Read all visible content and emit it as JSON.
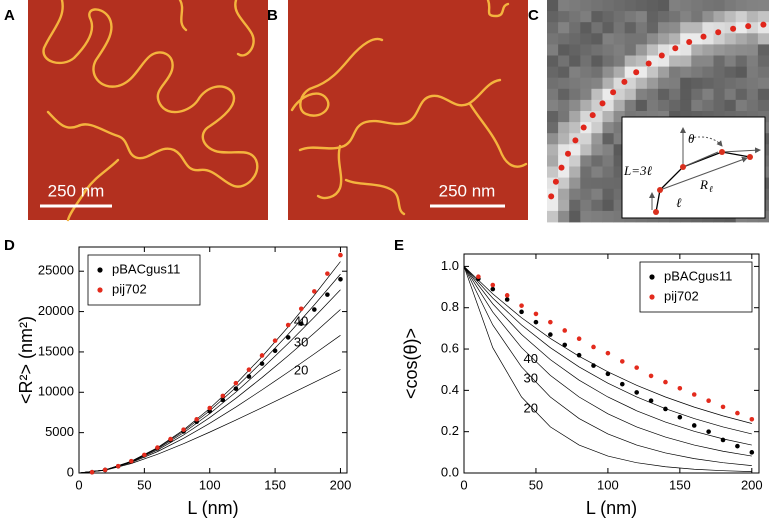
{
  "panel_labels": [
    "A",
    "B",
    "C",
    "D",
    "E"
  ],
  "scale_bars": [
    "250 nm",
    "250 nm"
  ],
  "inset": {
    "angle": "θ",
    "contour": "L=3ℓ",
    "distance": "R",
    "distance_sub": "ℓ",
    "bond": "ℓ"
  },
  "chart_data": [
    {
      "type": "scatter",
      "xlabel": "L (nm)",
      "ylabel": "<R²> (nm²)",
      "xlim": [
        0,
        205
      ],
      "xticks": [
        0,
        50,
        100,
        150,
        200
      ],
      "ylim": [
        0,
        28000
      ],
      "yticks": [
        0,
        5000,
        10000,
        15000,
        20000,
        25000
      ],
      "legend": "upper left",
      "x": [
        10,
        20,
        30,
        40,
        50,
        60,
        70,
        80,
        90,
        100,
        110,
        120,
        130,
        140,
        150,
        160,
        170,
        180,
        190,
        200
      ],
      "series": [
        {
          "name": "pBACgus11",
          "color": "#000000",
          "values": [
            97,
            378,
            830,
            1430,
            2180,
            3050,
            4060,
            5150,
            6350,
            7650,
            9050,
            10450,
            11950,
            13550,
            15150,
            16800,
            18500,
            20250,
            22100,
            24000
          ]
        },
        {
          "name": "pij702",
          "color": "#e32b1d",
          "values": [
            98,
            383,
            845,
            1465,
            2245,
            3150,
            4200,
            5370,
            6650,
            8050,
            9550,
            11130,
            12800,
            14560,
            16400,
            18330,
            20350,
            22500,
            24700,
            27000
          ]
        }
      ],
      "curves": {
        "color": "#000000",
        "x": [
          0,
          20,
          40,
          60,
          80,
          100,
          120,
          140,
          160,
          180,
          200
        ],
        "lines": [
          {
            "label": "20",
            "values": [
              0,
              341,
              1177,
              2314,
              3633,
              5063,
              6560,
              8096,
              9659,
              11236,
              12821
            ]
          },
          {
            "label": "30",
            "values": [
              0,
              359,
              1296,
              2649,
              4298,
              6160,
              8174,
              10298,
              12500,
              14759,
              17057
            ]
          },
          {
            "label": "40",
            "values": [
              0,
              369,
              1363,
              2847,
              4709,
              6867,
              9256,
              11825,
              14532,
              17349,
              20251
            ]
          },
          {
            "values": [
              0,
              374,
              1406,
              2976,
              4986,
              7358,
              10024,
              12932,
              16038,
              19306,
              22706
            ]
          },
          {
            "values": [
              0,
              379,
              1435,
              3067,
              5186,
              7716,
              10596,
              13768,
              17192,
              20825,
              24640
            ]
          },
          {
            "values": [
              0,
              382,
              1459,
              3135,
              5336,
              7988,
              11036,
              14422,
              18101,
              22039,
              26196
            ]
          }
        ]
      }
    },
    {
      "type": "scatter",
      "xlabel": "L (nm)",
      "ylabel": "<cos(θ)>",
      "xlim": [
        0,
        205
      ],
      "xticks": [
        0,
        50,
        100,
        150,
        200
      ],
      "ylim": [
        0,
        1.06
      ],
      "yticks": [
        {
          "value": 0,
          "label": "0.0"
        },
        0.2,
        0.4,
        0.6,
        0.8,
        {
          "value": 1,
          "label": "1.0"
        }
      ],
      "legend": "upper right",
      "x": [
        10,
        20,
        30,
        40,
        50,
        60,
        70,
        80,
        90,
        100,
        110,
        120,
        130,
        140,
        150,
        160,
        170,
        180,
        190,
        200
      ],
      "series": [
        {
          "name": "pBACgus11",
          "color": "#000000",
          "values": [
            0.94,
            0.89,
            0.84,
            0.78,
            0.73,
            0.67,
            0.62,
            0.57,
            0.52,
            0.48,
            0.43,
            0.39,
            0.35,
            0.31,
            0.27,
            0.23,
            0.2,
            0.16,
            0.13,
            0.1
          ]
        },
        {
          "name": "pij702",
          "color": "#e32b1d",
          "values": [
            0.95,
            0.91,
            0.86,
            0.81,
            0.77,
            0.73,
            0.69,
            0.65,
            0.61,
            0.58,
            0.54,
            0.51,
            0.47,
            0.44,
            0.41,
            0.38,
            0.35,
            0.32,
            0.29,
            0.26
          ]
        }
      ],
      "curves": {
        "color": "#000000",
        "x": [
          0,
          20,
          40,
          60,
          80,
          100,
          120,
          140,
          160,
          180,
          200
        ],
        "lines": [
          {
            "label": "20",
            "values": [
              1,
              0.6065,
              0.3679,
              0.2231,
              0.1353,
              0.0821,
              0.0498,
              0.0302,
              0.0183,
              0.0111,
              0.0067
            ]
          },
          {
            "label": "30",
            "values": [
              1,
              0.7165,
              0.5134,
              0.3679,
              0.2636,
              0.1889,
              0.1353,
              0.097,
              0.0695,
              0.0498,
              0.0357
            ]
          },
          {
            "label": "40",
            "values": [
              1,
              0.7788,
              0.6065,
              0.4724,
              0.3679,
              0.2865,
              0.2231,
              0.1738,
              0.1353,
              0.1054,
              0.0821
            ]
          },
          {
            "values": [
              1,
              0.8187,
              0.6703,
              0.5488,
              0.4493,
              0.3679,
              0.3012,
              0.2466,
              0.2019,
              0.1653,
              0.1353
            ]
          },
          {
            "values": [
              1,
              0.8465,
              0.7165,
              0.6065,
              0.5134,
              0.4346,
              0.3679,
              0.3114,
              0.2636,
              0.2231,
              0.1889
            ]
          },
          {
            "values": [
              1,
              0.8669,
              0.7515,
              0.6514,
              0.5647,
              0.4895,
              0.4244,
              0.3679,
              0.3189,
              0.2765,
              0.2397
            ]
          }
        ]
      }
    }
  ]
}
